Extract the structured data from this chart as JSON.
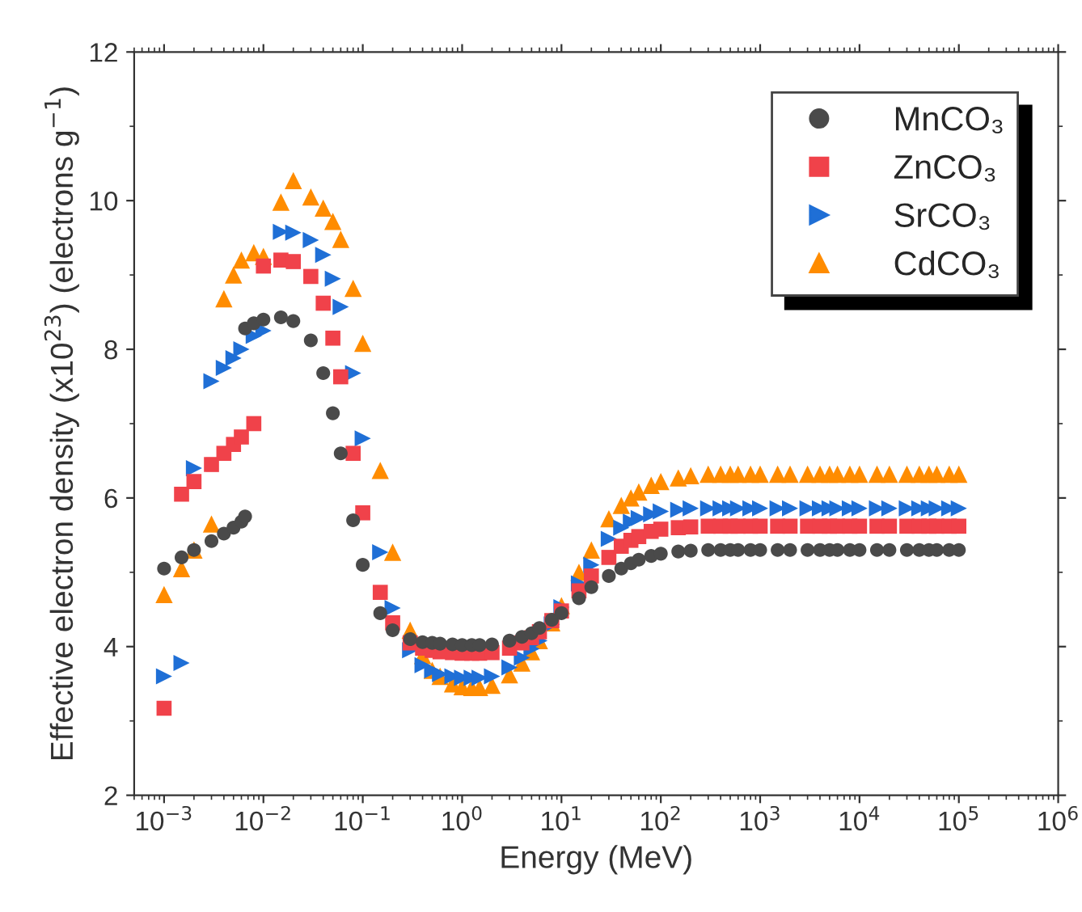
{
  "chart_data": {
    "type": "scatter",
    "xlabel": "Energy (MeV)",
    "ylabel": "Effective electron density (x10$^{23}$) (electrons g$^{−1}$)",
    "log": "x",
    "xlim": [
      0.0005,
      1000000
    ],
    "ylim": [
      2,
      12
    ],
    "xticks": [
      {
        "value": 0.001,
        "label": "10$^{−3}$"
      },
      {
        "value": 0.01,
        "label": "10$^{−2}$"
      },
      {
        "value": 0.1,
        "label": "10$^{−1}$"
      },
      {
        "value": 1,
        "label": "10$^{0}$"
      },
      {
        "value": 10,
        "label": "10$^{1}$"
      },
      {
        "value": 100,
        "label": "10$^{2}$"
      },
      {
        "value": 1000,
        "label": "10$^{3}$"
      },
      {
        "value": 10000,
        "label": "10$^{4}$"
      },
      {
        "value": 100000,
        "label": "10$^{5}$"
      },
      {
        "value": 1000000,
        "label": "10$^{6}$"
      }
    ],
    "yticks": [
      2,
      4,
      6,
      8,
      10,
      12
    ],
    "grid": false,
    "legend": "top right",
    "x": [
      0.001,
      0.0015,
      0.002,
      0.003,
      0.004,
      0.005,
      0.006,
      0.008,
      0.01,
      0.015,
      0.02,
      0.03,
      0.04,
      0.05,
      0.06,
      0.08,
      0.1,
      0.15,
      0.2,
      0.3,
      0.4,
      0.5,
      0.6,
      0.8,
      1,
      1.25,
      1.5,
      2,
      3,
      4,
      5,
      6,
      8,
      10,
      15,
      20,
      30,
      40,
      50,
      60,
      80,
      100,
      150,
      200,
      300,
      400,
      500,
      600,
      800,
      1000,
      1500,
      2000,
      3000,
      4000,
      5000,
      6000,
      8000,
      10000,
      15000,
      20000,
      30000,
      40000,
      50000,
      60000,
      80000,
      100000
    ],
    "series": [
      {
        "name": "MnCO₃",
        "color": "#4a4a4a",
        "marker": "circle",
        "x": [
          0.001,
          0.0015,
          0.002,
          0.003,
          0.004,
          0.005,
          0.006,
          0.00654,
          0.00654,
          0.008,
          0.01,
          0.015,
          0.02,
          0.03,
          0.04,
          0.05,
          0.06,
          0.08,
          0.1,
          0.15,
          0.2,
          0.3,
          0.4,
          0.5,
          0.6,
          0.8,
          1,
          1.25,
          1.5,
          2,
          3,
          4,
          5,
          6,
          8,
          10,
          15,
          20,
          30,
          40,
          50,
          60,
          80,
          100,
          150,
          200,
          300,
          400,
          500,
          600,
          800,
          1000,
          1500,
          2000,
          3000,
          4000,
          5000,
          6000,
          8000,
          10000,
          15000,
          20000,
          30000,
          40000,
          50000,
          60000,
          80000,
          100000
        ],
        "values": [
          5.05,
          5.2,
          5.3,
          5.42,
          5.52,
          5.6,
          5.68,
          5.75,
          8.28,
          8.35,
          8.4,
          8.43,
          8.38,
          8.12,
          7.68,
          7.14,
          6.6,
          5.7,
          5.1,
          4.45,
          4.22,
          4.1,
          4.06,
          4.05,
          4.04,
          4.03,
          4.02,
          4.02,
          4.02,
          4.03,
          4.08,
          4.13,
          4.18,
          4.25,
          4.36,
          4.45,
          4.65,
          4.8,
          4.95,
          5.05,
          5.12,
          5.17,
          5.22,
          5.25,
          5.28,
          5.29,
          5.3,
          5.3,
          5.3,
          5.3,
          5.3,
          5.3,
          5.3,
          5.3,
          5.3,
          5.3,
          5.3,
          5.3,
          5.3,
          5.3,
          5.3,
          5.3,
          5.3,
          5.3,
          5.3,
          5.3,
          5.3,
          5.3
        ]
      },
      {
        "name": "ZnCO₃",
        "color": "#f0424a",
        "marker": "square",
        "values": [
          3.17,
          6.05,
          6.22,
          6.45,
          6.6,
          6.72,
          6.82,
          7.0,
          9.12,
          9.2,
          9.18,
          8.98,
          8.62,
          8.15,
          7.63,
          6.6,
          5.8,
          4.73,
          4.32,
          4.05,
          3.98,
          3.95,
          3.93,
          3.92,
          3.91,
          3.91,
          3.91,
          3.92,
          3.98,
          4.05,
          4.12,
          4.2,
          4.35,
          4.48,
          4.75,
          4.95,
          5.2,
          5.35,
          5.43,
          5.48,
          5.55,
          5.58,
          5.6,
          5.61,
          5.62,
          5.62,
          5.62,
          5.62,
          5.62,
          5.62,
          5.62,
          5.62,
          5.62,
          5.62,
          5.62,
          5.62,
          5.62,
          5.62,
          5.62,
          5.62,
          5.62,
          5.62,
          5.62,
          5.62,
          5.62,
          5.62
        ]
      },
      {
        "name": "SrCO₃",
        "color": "#1f6fd6",
        "marker": "triangle_right",
        "values": [
          3.6,
          3.78,
          6.4,
          7.57,
          7.75,
          7.88,
          8.0,
          8.18,
          8.25,
          9.58,
          9.57,
          9.47,
          9.27,
          8.95,
          8.57,
          7.68,
          6.8,
          5.27,
          4.52,
          3.95,
          3.75,
          3.68,
          3.63,
          3.6,
          3.58,
          3.58,
          3.58,
          3.6,
          3.72,
          3.85,
          3.97,
          4.08,
          4.3,
          4.53,
          4.85,
          5.1,
          5.45,
          5.6,
          5.68,
          5.73,
          5.78,
          5.82,
          5.84,
          5.86,
          5.86,
          5.86,
          5.86,
          5.86,
          5.86,
          5.86,
          5.86,
          5.86,
          5.86,
          5.86,
          5.86,
          5.86,
          5.86,
          5.86,
          5.86,
          5.86,
          5.86,
          5.86,
          5.86,
          5.86,
          5.86,
          5.86
        ]
      },
      {
        "name": "CdCO₃",
        "color": "#ff8c00",
        "marker": "triangle",
        "values": [
          4.7,
          5.05,
          5.3,
          5.65,
          8.68,
          9.0,
          9.2,
          9.3,
          9.25,
          9.98,
          10.27,
          10.05,
          9.9,
          9.72,
          9.48,
          8.82,
          8.08,
          6.37,
          5.27,
          4.22,
          3.88,
          3.68,
          3.6,
          3.5,
          3.46,
          3.45,
          3.45,
          3.48,
          3.62,
          3.78,
          3.93,
          4.08,
          4.32,
          4.55,
          5.0,
          5.3,
          5.72,
          5.9,
          6.0,
          6.08,
          6.17,
          6.22,
          6.27,
          6.3,
          6.32,
          6.32,
          6.32,
          6.32,
          6.32,
          6.32,
          6.32,
          6.32,
          6.32,
          6.32,
          6.32,
          6.32,
          6.32,
          6.32,
          6.32,
          6.32,
          6.32,
          6.32,
          6.32,
          6.32,
          6.32,
          6.32
        ]
      }
    ]
  }
}
